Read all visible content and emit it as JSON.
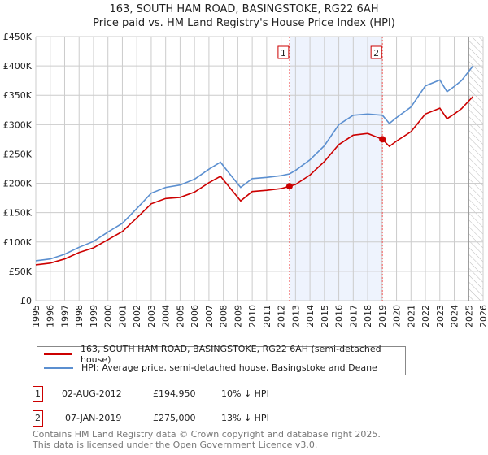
{
  "header": {
    "title": "163, SOUTH HAM ROAD, BASINGSTOKE, RG22 6AH",
    "subtitle": "Price paid vs. HM Land Registry's House Price Index (HPI)"
  },
  "chart_data": {
    "type": "line",
    "title": "163, SOUTH HAM ROAD, BASINGSTOKE, RG22 6AH — Price paid vs. HM Land Registry's House Price Index (HPI)",
    "xlim": [
      1995,
      2026
    ],
    "ylim": [
      0,
      450000
    ],
    "x_ticks": [
      "1995",
      "1996",
      "1997",
      "1998",
      "1999",
      "2000",
      "2001",
      "2002",
      "2003",
      "2004",
      "2005",
      "2006",
      "2007",
      "2008",
      "2009",
      "2010",
      "2011",
      "2012",
      "2013",
      "2014",
      "2015",
      "2016",
      "2017",
      "2018",
      "2019",
      "2020",
      "2021",
      "2022",
      "2023",
      "2024",
      "2025",
      "2026"
    ],
    "y_ticks": [
      {
        "v": 0,
        "l": "£0"
      },
      {
        "v": 50000,
        "l": "£50K"
      },
      {
        "v": 100000,
        "l": "£100K"
      },
      {
        "v": 150000,
        "l": "£150K"
      },
      {
        "v": 200000,
        "l": "£200K"
      },
      {
        "v": 250000,
        "l": "£250K"
      },
      {
        "v": 300000,
        "l": "£300K"
      },
      {
        "v": 350000,
        "l": "£350K"
      },
      {
        "v": 400000,
        "l": "£400K"
      },
      {
        "v": 450000,
        "l": "£450K"
      }
    ],
    "grid": true,
    "shaded_range": [
      2012.58,
      2019.02
    ],
    "forecast_hatch_from": 2025.0,
    "series": [
      {
        "name": "163, SOUTH HAM ROAD, BASINGSTOKE, RG22 6AH (semi-detached house)",
        "color": "#cc0000",
        "x": [
          1995,
          1996,
          1997,
          1998,
          1999,
          2000,
          2001,
          2002,
          2003,
          2004,
          2005,
          2006,
          2007,
          2007.8,
          2008.5,
          2009.2,
          2010,
          2011,
          2012,
          2012.58,
          2013,
          2014,
          2015,
          2016,
          2017,
          2018,
          2019.02,
          2019.5,
          2020,
          2021,
          2022,
          2023,
          2023.5,
          2024,
          2024.5,
          2025.3
        ],
        "values": [
          61000,
          64000,
          71000,
          82000,
          90000,
          104000,
          118000,
          141000,
          165000,
          174000,
          176000,
          185000,
          201000,
          212000,
          191000,
          170000,
          186000,
          188000,
          191000,
          194950,
          198000,
          214000,
          237000,
          266000,
          282000,
          285000,
          275000,
          263000,
          272000,
          288000,
          318000,
          328000,
          310000,
          318000,
          327000,
          348000
        ]
      },
      {
        "name": "HPI: Average price, semi-detached house, Basingstoke and Deane",
        "color": "#5b8fd0",
        "x": [
          1995,
          1996,
          1997,
          1998,
          1999,
          2000,
          2001,
          2002,
          2003,
          2004,
          2005,
          2006,
          2007,
          2007.8,
          2008.5,
          2009.2,
          2010,
          2011,
          2012,
          2012.58,
          2013,
          2014,
          2015,
          2016,
          2017,
          2018,
          2019.02,
          2019.5,
          2020,
          2021,
          2022,
          2023,
          2023.5,
          2024,
          2024.5,
          2025.3
        ],
        "values": [
          68000,
          71000,
          79000,
          91000,
          101000,
          117000,
          132000,
          157000,
          183000,
          193000,
          197000,
          207000,
          224000,
          236000,
          214000,
          193000,
          208000,
          210000,
          213000,
          216000,
          222000,
          240000,
          264000,
          300000,
          316000,
          318000,
          316000,
          302000,
          312000,
          330000,
          366000,
          376000,
          356000,
          365000,
          375000,
          400000
        ]
      }
    ],
    "markers": [
      {
        "label": "1",
        "x": 2012.58,
        "y": 194950
      },
      {
        "label": "2",
        "x": 2019.02,
        "y": 275000
      }
    ]
  },
  "legend": {
    "red": "163, SOUTH HAM ROAD, BASINGSTOKE, RG22 6AH (semi-detached house)",
    "blue": "HPI: Average price, semi-detached house, Basingstoke and Deane"
  },
  "transactions": [
    {
      "num": "1",
      "date": "02-AUG-2012",
      "price": "£194,950",
      "hpi": "10% ↓ HPI"
    },
    {
      "num": "2",
      "date": "07-JAN-2019",
      "price": "£275,000",
      "hpi": "13% ↓ HPI"
    }
  ],
  "footer": {
    "line1": "Contains HM Land Registry data © Crown copyright and database right 2025.",
    "line2": "This data is licensed under the Open Government Licence v3.0."
  }
}
